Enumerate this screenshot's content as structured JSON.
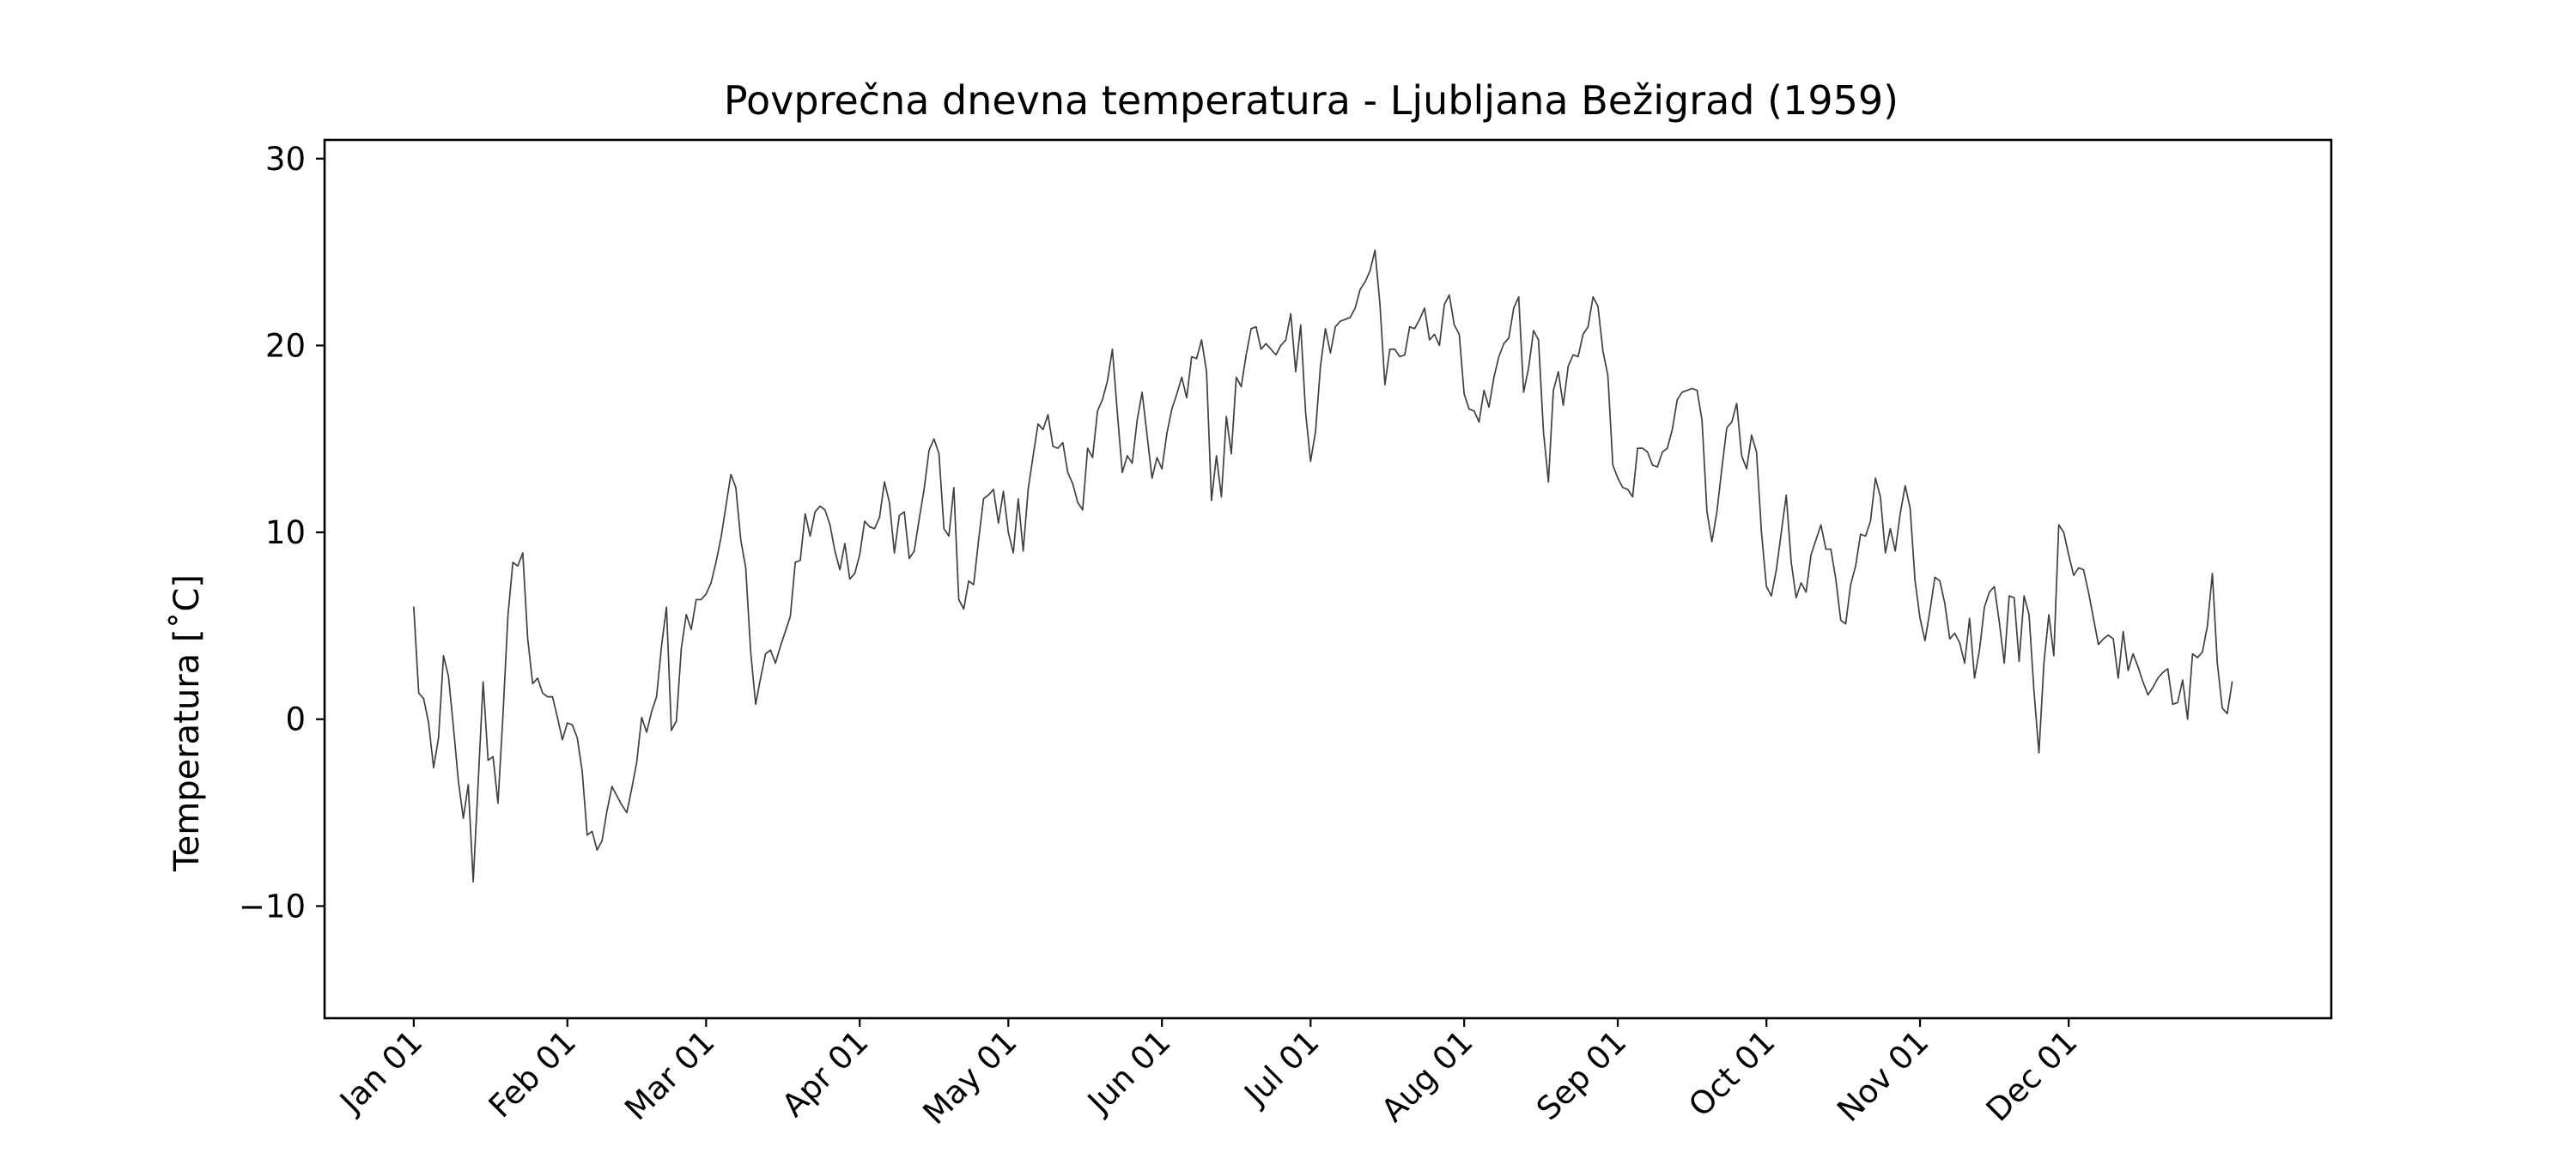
{
  "chart_data": {
    "type": "line",
    "title": "Povprečna dnevna temperatura - Ljubljana Bežigrad (1959)",
    "xlabel": "",
    "ylabel": "Temperatura [˚C]",
    "ylim": [
      -16,
      31
    ],
    "xlim": [
      "1958-12-14",
      "1960-01-23"
    ],
    "grid": false,
    "legend": "none",
    "line_color": "#404040",
    "x_ticks": [
      {
        "date": "1959-01-01",
        "label": "Jan 01"
      },
      {
        "date": "1959-02-01",
        "label": "Feb 01"
      },
      {
        "date": "1959-03-01",
        "label": "Mar 01"
      },
      {
        "date": "1959-04-01",
        "label": "Apr 01"
      },
      {
        "date": "1959-05-01",
        "label": "May 01"
      },
      {
        "date": "1959-06-01",
        "label": "Jun 01"
      },
      {
        "date": "1959-07-01",
        "label": "Jul 01"
      },
      {
        "date": "1959-08-01",
        "label": "Aug 01"
      },
      {
        "date": "1959-09-01",
        "label": "Sep 01"
      },
      {
        "date": "1959-10-01",
        "label": "Oct 01"
      },
      {
        "date": "1959-11-01",
        "label": "Nov 01"
      },
      {
        "date": "1959-12-01",
        "label": "Dec 01"
      }
    ],
    "y_ticks": [
      -10,
      0,
      10,
      20,
      30
    ],
    "series": [
      {
        "start_date": "1959-01-01",
        "step_days": 1,
        "values": [
          6.0,
          1.4,
          1.1,
          -0.2,
          -2.6,
          -1.0,
          3.4,
          2.3,
          -0.4,
          -3.3,
          -5.3,
          -3.5,
          -8.7,
          -3.4,
          2.0,
          -2.2,
          -2.0,
          -4.5,
          0.2,
          5.5,
          8.4,
          8.2,
          8.9,
          4.3,
          1.9,
          2.2,
          1.4,
          1.2,
          1.2,
          0.1,
          -1.1,
          -0.2,
          -0.3,
          -1.0,
          -2.8,
          -6.2,
          -6.0,
          -7.0,
          -6.5,
          -4.9,
          -3.6,
          -4.1,
          -4.6,
          -5.0,
          -3.7,
          -2.3,
          0.1,
          -0.7,
          0.4,
          1.2,
          3.9,
          6.0,
          -0.6,
          -0.1,
          3.8,
          5.6,
          4.8,
          6.4,
          6.4,
          6.7,
          7.3,
          8.4,
          9.7,
          11.4,
          13.1,
          12.4,
          9.6,
          8.1,
          3.6,
          0.8,
          2.2,
          3.5,
          3.7,
          3.0,
          3.9,
          4.7,
          5.5,
          8.4,
          8.5,
          11.0,
          9.8,
          11.1,
          11.4,
          11.2,
          10.4,
          9.0,
          8.0,
          9.4,
          7.5,
          7.8,
          8.8,
          10.6,
          10.3,
          10.2,
          10.8,
          12.7,
          11.6,
          8.9,
          10.9,
          11.1,
          8.6,
          9.0,
          10.7,
          12.3,
          14.4,
          15.0,
          14.2,
          10.2,
          9.8,
          12.4,
          6.4,
          5.9,
          7.4,
          7.2,
          9.6,
          11.8,
          12.0,
          12.3,
          10.5,
          12.2,
          10.0,
          8.9,
          11.8,
          9.0,
          12.3,
          14.1,
          15.8,
          15.5,
          16.3,
          14.6,
          14.5,
          14.8,
          13.2,
          12.6,
          11.6,
          11.2,
          14.5,
          14.0,
          16.5,
          17.1,
          18.1,
          19.8,
          16.4,
          13.2,
          14.1,
          13.7,
          16.0,
          17.5,
          15.2,
          12.9,
          14.0,
          13.4,
          15.3,
          16.6,
          17.4,
          18.3,
          17.2,
          19.4,
          19.3,
          20.3,
          18.6,
          11.7,
          14.1,
          11.9,
          16.2,
          14.2,
          18.3,
          17.8,
          19.5,
          20.9,
          21.0,
          19.8,
          20.1,
          19.8,
          19.5,
          20.0,
          20.3,
          21.7,
          18.6,
          21.1,
          16.4,
          13.8,
          15.4,
          18.9,
          20.9,
          19.6,
          21.0,
          21.3,
          21.4,
          21.5,
          22.0,
          23.0,
          23.4,
          24.0,
          25.1,
          22.2,
          17.9,
          19.8,
          19.8,
          19.4,
          19.5,
          21.0,
          20.9,
          21.4,
          22.0,
          20.3,
          20.6,
          20.0,
          22.2,
          22.7,
          21.1,
          20.6,
          17.4,
          16.6,
          16.5,
          15.9,
          17.6,
          16.7,
          18.3,
          19.4,
          20.1,
          20.4,
          22.0,
          22.6,
          17.5,
          18.8,
          20.8,
          20.3,
          15.4,
          12.7,
          17.6,
          18.6,
          16.8,
          18.9,
          19.5,
          19.4,
          20.6,
          21.0,
          22.6,
          22.1,
          19.7,
          18.4,
          13.6,
          12.9,
          12.4,
          12.3,
          11.9,
          14.5,
          14.5,
          14.3,
          13.6,
          13.5,
          14.3,
          14.5,
          15.5,
          17.1,
          17.5,
          17.6,
          17.7,
          17.6,
          16.0,
          11.1,
          9.5,
          11.1,
          13.4,
          15.6,
          15.9,
          16.9,
          14.1,
          13.4,
          15.2,
          14.3,
          10.0,
          7.1,
          6.6,
          8.0,
          10.0,
          12.0,
          8.4,
          6.5,
          7.3,
          6.8,
          8.8,
          9.6,
          10.4,
          9.1,
          9.1,
          7.5,
          5.3,
          5.1,
          7.2,
          8.2,
          9.9,
          9.8,
          10.6,
          12.9,
          11.9,
          8.9,
          10.2,
          9.0,
          11.0,
          12.5,
          11.3,
          7.4,
          5.4,
          4.2,
          5.8,
          7.6,
          7.4,
          6.2,
          4.3,
          4.6,
          4.1,
          3.0,
          5.4,
          2.2,
          3.7,
          6.0,
          6.8,
          7.1,
          5.2,
          3.0,
          6.6,
          6.5,
          3.1,
          6.6,
          5.6,
          1.5,
          -1.8,
          3.0,
          5.6,
          3.4,
          10.4,
          10.0,
          8.8,
          7.7,
          8.1,
          8.0,
          6.8,
          5.4,
          4.0,
          4.3,
          4.5,
          4.3,
          2.2,
          4.7,
          2.6,
          3.5,
          2.8,
          2.0,
          1.3,
          1.7,
          2.2,
          2.5,
          2.7,
          0.8,
          0.9,
          2.1,
          0.0,
          3.5,
          3.3,
          3.6,
          5.0,
          7.8,
          3.0,
          0.6,
          0.3,
          2.0
        ]
      }
    ]
  }
}
